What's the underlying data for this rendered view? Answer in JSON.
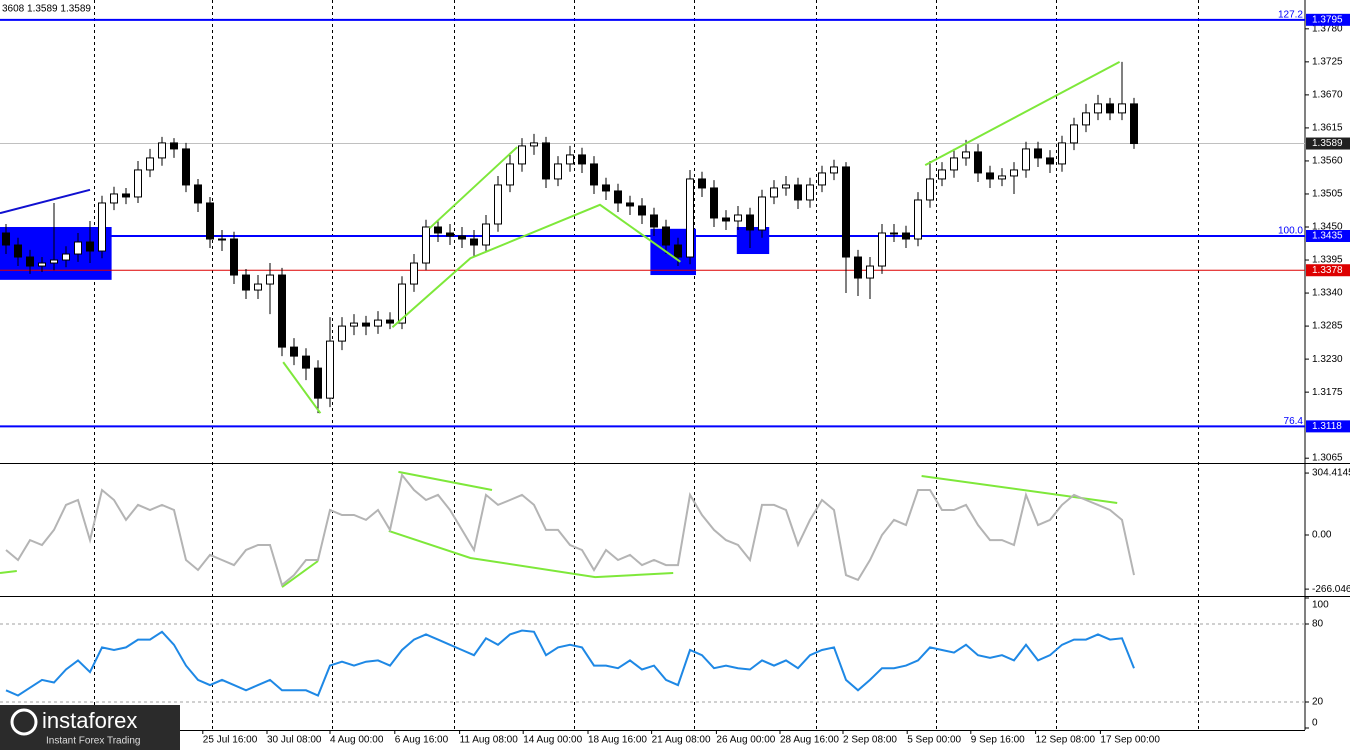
{
  "header": "3608 1.3589 1.3589",
  "watermark": {
    "brand": "instaforex",
    "tagline": "Instant Forex Trading"
  },
  "chart_data": [
    {
      "type": "candlestick",
      "xlim": [
        -0.5,
        108.25
      ],
      "ylim": [
        1.3057,
        1.3828
      ],
      "yticks": [
        {
          "value": 1.378,
          "label": "1.3780"
        },
        1.3725,
        {
          "value": 1.367,
          "label": "1.3670"
        },
        1.3615,
        {
          "value": 1.356,
          "label": "1.3560"
        },
        1.3505,
        {
          "value": 1.345,
          "label": "1.3450"
        },
        1.3395,
        {
          "value": 1.334,
          "label": "1.3340"
        },
        1.3285,
        {
          "value": 1.323,
          "label": "1.3230"
        },
        1.3175,
        1.3065
      ],
      "xticks": [
        {
          "value": 16.4,
          "label": "25 Jul 16:00"
        },
        {
          "value": 21.75,
          "label": "30 Jul 08:00"
        },
        {
          "value": 27,
          "label": "4 Aug 00:00"
        },
        {
          "value": 32.4,
          "label": "6 Aug 16:00"
        },
        {
          "value": 37.8,
          "label": "11 Aug 08:00"
        },
        {
          "value": 43.1,
          "label": "14 Aug 00:00"
        },
        {
          "value": 48.5,
          "label": "18 Aug 16:00"
        },
        {
          "value": 53.8,
          "label": "21 Aug 08:00"
        },
        {
          "value": 59.2,
          "label": "26 Aug 00:00"
        },
        {
          "value": 64.5,
          "label": "28 Aug 16:00"
        },
        {
          "value": 69.75,
          "label": "2 Sep 08:00"
        },
        {
          "value": 75.1,
          "label": "5 Sep 00:00"
        },
        {
          "value": 80.4,
          "label": "9 Sep 16:00"
        },
        {
          "value": 85.8,
          "label": "12 Sep 08:00"
        },
        {
          "value": 91.2,
          "label": "17 Sep 00:00"
        }
      ],
      "open": [
        1.344,
        1.342,
        1.34,
        1.3385,
        1.339,
        1.3395,
        1.3405,
        1.3425,
        1.341,
        1.349,
        1.3505,
        1.35,
        1.3545,
        1.3565,
        1.359,
        1.358,
        1.352,
        1.349,
        1.343,
        1.343,
        1.337,
        1.3345,
        1.3355,
        1.337,
        1.325,
        1.3235,
        1.3215,
        1.3165,
        1.326,
        1.3285,
        1.329,
        1.3285,
        1.3295,
        1.329,
        1.3355,
        1.339,
        1.345,
        1.344,
        1.3435,
        1.343,
        1.342,
        1.3455,
        1.352,
        1.3555,
        1.3585,
        1.359,
        1.353,
        1.3555,
        1.357,
        1.3555,
        1.352,
        1.351,
        1.349,
        1.3485,
        1.347,
        1.345,
        1.342,
        1.34,
        1.353,
        1.3515,
        1.3465,
        1.346,
        1.347,
        1.3445,
        1.35,
        1.3515,
        1.352,
        1.3495,
        1.352,
        1.354,
        1.355,
        1.34,
        1.3365,
        1.3385,
        1.344,
        1.344,
        1.343,
        1.3495,
        1.353,
        1.3545,
        1.3565,
        1.3575,
        1.354,
        1.353,
        1.3535,
        1.3545,
        1.358,
        1.3565,
        1.3555,
        1.359,
        1.362,
        1.364,
        1.3655,
        1.364,
        1.3655
      ],
      "high": [
        1.3455,
        1.3432,
        1.3412,
        1.34,
        1.349,
        1.3418,
        1.344,
        1.346,
        1.3502,
        1.3517,
        1.3515,
        1.356,
        1.358,
        1.36,
        1.3598,
        1.359,
        1.353,
        1.35,
        1.3445,
        1.3442,
        1.338,
        1.337,
        1.339,
        1.3382,
        1.3265,
        1.3248,
        1.3228,
        1.33,
        1.33,
        1.3305,
        1.3302,
        1.331,
        1.3308,
        1.3368,
        1.3405,
        1.3462,
        1.3462,
        1.3455,
        1.345,
        1.3445,
        1.347,
        1.3535,
        1.357,
        1.3598,
        1.3605,
        1.36,
        1.3568,
        1.3585,
        1.3582,
        1.3568,
        1.3532,
        1.3522,
        1.3502,
        1.3498,
        1.3482,
        1.3462,
        1.3432,
        1.3545,
        1.3542,
        1.3528,
        1.3478,
        1.3485,
        1.3482,
        1.3512,
        1.3528,
        1.3535,
        1.3532,
        1.3532,
        1.3552,
        1.3562,
        1.3558,
        1.3412,
        1.34,
        1.3455,
        1.3455,
        1.3452,
        1.3508,
        1.356,
        1.3558,
        1.358,
        1.3595,
        1.3588,
        1.3552,
        1.3548,
        1.3558,
        1.3592,
        1.3592,
        1.3578,
        1.3602,
        1.3632,
        1.3655,
        1.367,
        1.3665,
        1.3725,
        1.3665
      ],
      "low": [
        1.3405,
        1.3385,
        1.3372,
        1.3375,
        1.3378,
        1.3383,
        1.3392,
        1.339,
        1.3398,
        1.3478,
        1.3488,
        1.349,
        1.3533,
        1.3552,
        1.3565,
        1.3508,
        1.3475,
        1.3415,
        1.341,
        1.3355,
        1.333,
        1.333,
        1.3305,
        1.3235,
        1.322,
        1.3195,
        1.314,
        1.315,
        1.3245,
        1.327,
        1.327,
        1.3272,
        1.328,
        1.328,
        1.3342,
        1.3378,
        1.3425,
        1.342,
        1.3415,
        1.34,
        1.3408,
        1.3442,
        1.3508,
        1.3542,
        1.357,
        1.3515,
        1.3518,
        1.3542,
        1.354,
        1.3505,
        1.3495,
        1.3475,
        1.347,
        1.3455,
        1.3435,
        1.3405,
        1.3385,
        1.3388,
        1.35,
        1.345,
        1.3445,
        1.3445,
        1.3415,
        1.3432,
        1.3488,
        1.3502,
        1.348,
        1.3482,
        1.3508,
        1.3528,
        1.334,
        1.3335,
        1.333,
        1.3372,
        1.3425,
        1.3415,
        1.3418,
        1.3482,
        1.3518,
        1.3532,
        1.3552,
        1.3525,
        1.3515,
        1.3518,
        1.3505,
        1.3532,
        1.355,
        1.354,
        1.3542,
        1.3578,
        1.3608,
        1.3628,
        1.3628,
        1.3628,
        1.358
      ],
      "close": [
        1.342,
        1.34,
        1.3385,
        1.339,
        1.3395,
        1.3405,
        1.3425,
        1.341,
        1.349,
        1.3505,
        1.35,
        1.3545,
        1.3565,
        1.359,
        1.358,
        1.352,
        1.349,
        1.343,
        1.343,
        1.337,
        1.3345,
        1.3355,
        1.337,
        1.325,
        1.3235,
        1.3215,
        1.3165,
        1.326,
        1.3285,
        1.329,
        1.3285,
        1.3295,
        1.329,
        1.3355,
        1.339,
        1.345,
        1.344,
        1.3435,
        1.343,
        1.342,
        1.3455,
        1.352,
        1.3555,
        1.3585,
        1.359,
        1.353,
        1.3555,
        1.357,
        1.3555,
        1.352,
        1.351,
        1.349,
        1.3485,
        1.347,
        1.345,
        1.342,
        1.34,
        1.353,
        1.3515,
        1.3465,
        1.346,
        1.347,
        1.3445,
        1.35,
        1.3515,
        1.352,
        1.3495,
        1.352,
        1.354,
        1.355,
        1.34,
        1.3365,
        1.3385,
        1.344,
        1.344,
        1.343,
        1.3495,
        1.353,
        1.3545,
        1.3565,
        1.3575,
        1.354,
        1.353,
        1.3535,
        1.3545,
        1.358,
        1.3565,
        1.3555,
        1.359,
        1.362,
        1.364,
        1.3655,
        1.364,
        1.3655,
        1.3589
      ],
      "levels": [
        {
          "value": 1.3795,
          "fib": "127.2",
          "color": "#0000ff"
        },
        {
          "value": 1.3435,
          "fib": "100.0",
          "color": "#0000ff"
        },
        {
          "value": 1.3118,
          "fib": "76.4",
          "color": "#0000ff"
        },
        {
          "value": 1.3378,
          "color": "#dd0000"
        }
      ],
      "current_price": {
        "value": 1.3589,
        "color": "#c0c0c0"
      },
      "zones": [
        {
          "x": [
            -0.5,
            8.8
          ],
          "y": [
            1.3362,
            1.345
          ],
          "color": "#0000ff"
        },
        {
          "x": [
            53.7,
            57.5
          ],
          "y": [
            1.337,
            1.3447
          ],
          "color": "#0000ff"
        },
        {
          "x": [
            60.9,
            63.6
          ],
          "y": [
            1.3405,
            1.345
          ],
          "color": "#0000ff"
        }
      ],
      "trendlines": [
        {
          "color": "#1010d0",
          "points": [
            [
              -0.5,
              1.3473
            ],
            [
              7,
              1.3512
            ]
          ]
        },
        {
          "color": "#7ee83a",
          "points": [
            [
              23.1,
              1.3225
            ],
            [
              26.2,
              1.314
            ]
          ]
        },
        {
          "color": "#7ee83a",
          "points": [
            [
              32.2,
              1.3283
            ],
            [
              38.7,
              1.3398
            ],
            [
              49.5,
              1.3487
            ],
            [
              56.2,
              1.3392
            ]
          ]
        },
        {
          "color": "#7ee83a",
          "points": [
            [
              35.3,
              1.3448
            ],
            [
              42.6,
              1.3583
            ]
          ]
        },
        {
          "color": "#7ee83a",
          "points": [
            [
              76.6,
              1.3553
            ],
            [
              92.8,
              1.3725
            ]
          ]
        }
      ]
    },
    {
      "type": "line",
      "color": "#b4b4b4",
      "ylim": [
        -295,
        344
      ],
      "yticks": [
        304.4145,
        {
          "value": 0,
          "label": "0.00"
        },
        -266.046
      ],
      "values": [
        -74,
        -123,
        -25,
        -49,
        25,
        148,
        172,
        -25,
        221,
        172,
        74,
        148,
        123,
        148,
        123,
        -123,
        -172,
        -98,
        -123,
        -148,
        -74,
        -49,
        -49,
        -246,
        -197,
        -123,
        -123,
        123,
        98,
        98,
        74,
        123,
        25,
        295,
        221,
        172,
        197,
        123,
        25,
        -74,
        197,
        148,
        172,
        197,
        148,
        25,
        25,
        -49,
        -74,
        -172,
        -74,
        -123,
        -98,
        -148,
        -123,
        -148,
        -148,
        197,
        98,
        25,
        -25,
        -49,
        -123,
        148,
        148,
        123,
        -49,
        74,
        172,
        123,
        -197,
        -221,
        -123,
        0,
        74,
        49,
        221,
        221,
        123,
        123,
        148,
        49,
        -25,
        -25,
        -49,
        197,
        49,
        74,
        148,
        197,
        172,
        148,
        123,
        74,
        -197
      ],
      "trendlines": [
        {
          "color": "#7ee83a",
          "points": [
            [
              -0.5,
              -187
            ],
            [
              0.9,
              -177
            ]
          ]
        },
        {
          "color": "#7ee83a",
          "points": [
            [
              23,
              -256
            ],
            [
              26,
              -128
            ]
          ]
        },
        {
          "color": "#7ee83a",
          "points": [
            [
              32.7,
              310
            ],
            [
              40.5,
              221
            ]
          ]
        },
        {
          "color": "#7ee83a",
          "points": [
            [
              31.9,
              20
            ],
            [
              38.7,
              -113
            ],
            [
              49.1,
              -207
            ],
            [
              55.6,
              -187
            ]
          ]
        },
        {
          "color": "#7ee83a",
          "points": [
            [
              76.3,
              290
            ],
            [
              92.6,
              157
            ]
          ]
        }
      ]
    },
    {
      "type": "line",
      "color": "#1e88e5",
      "ylim": [
        0,
        100
      ],
      "yticks": [
        100,
        80,
        20,
        0
      ],
      "values": [
        29,
        25,
        31,
        37,
        35,
        45,
        52,
        43,
        62,
        60,
        62,
        68,
        68,
        74,
        64,
        48,
        37,
        33,
        37,
        33,
        29,
        33,
        37,
        29,
        29,
        29,
        25,
        48,
        51,
        48,
        51,
        52,
        48,
        60,
        68,
        72,
        68,
        64,
        60,
        56,
        69,
        64,
        72,
        75,
        74,
        56,
        62,
        64,
        62,
        48,
        48,
        46,
        52,
        45,
        48,
        37,
        33,
        60,
        56,
        46,
        48,
        46,
        45,
        52,
        48,
        52,
        46,
        56,
        60,
        62,
        37,
        29,
        37,
        46,
        46,
        48,
        52,
        62,
        60,
        58,
        64,
        56,
        54,
        56,
        52,
        64,
        52,
        56,
        64,
        68,
        68,
        72,
        68,
        69,
        46
      ]
    }
  ]
}
